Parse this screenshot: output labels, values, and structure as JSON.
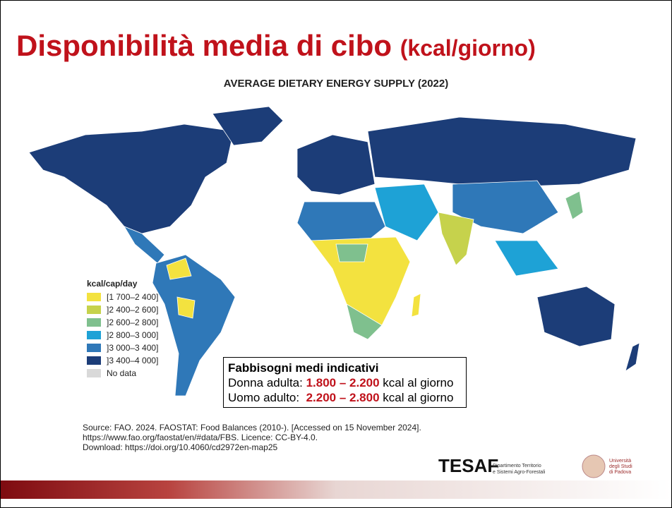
{
  "header": {
    "title": "Disponibilità media di cibo",
    "title_unit": "(kcal/giorno)"
  },
  "map": {
    "title": "AVERAGE DIETARY ENERGY SUPPLY (2022)",
    "legend": {
      "title": "kcal/cap/day",
      "items": [
        {
          "label": "[1 700–2 400]",
          "color": "#f3e23f"
        },
        {
          "label": "]2 400–2 600]",
          "color": "#c6d24c"
        },
        {
          "label": "]2 600–2 800]",
          "color": "#7fc08e"
        },
        {
          "label": "]2 800–3 000]",
          "color": "#1ea2d6"
        },
        {
          "label": "]3 000–3 400]",
          "color": "#2f78b8"
        },
        {
          "label": "]3 400–4 000]",
          "color": "#1c3d78"
        },
        {
          "label": "No data",
          "color": "#d9d9d9"
        }
      ]
    },
    "source": [
      "Source: FAO. 2024. FAOSTAT: Food Balances (2010-). [Accessed on 15 November 2024].",
      "https://www.fao.org/faostat/en/#data/FBS. Licence: CC-BY-4.0.",
      "Download: https://doi.org/10.4060/cd2972en-map25"
    ]
  },
  "box": {
    "title": "Fabbisogni medi indicativi",
    "rows": [
      {
        "label": "Donna adulta: ",
        "range": "1.800 – 2.200",
        "unit": " kcal al giorno"
      },
      {
        "label": "Uomo adulto:  ",
        "range": "2.200 – 2.800",
        "unit": " kcal al giorno"
      }
    ]
  },
  "footer": {
    "logo": "TESAF",
    "dept": [
      "Dipartimento Territorio",
      "e Sistemi Agro-Forestali"
    ],
    "university": [
      "Università",
      "degli Studi",
      "di Padova"
    ]
  }
}
